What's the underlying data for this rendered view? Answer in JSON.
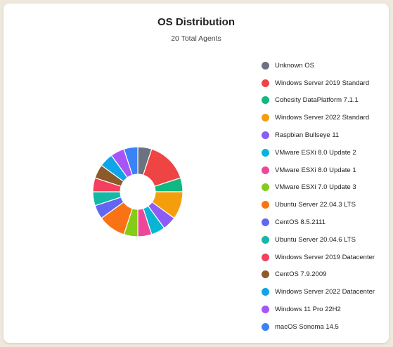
{
  "header": {
    "title": "OS Distribution",
    "subtitle": "20 Total Agents"
  },
  "chart_data": {
    "type": "pie",
    "donut": true,
    "title": "OS Distribution",
    "subtitle": "20 Total Agents",
    "legend_position": "right",
    "categories": [
      "Unknown OS",
      "Windows Server 2019 Standard",
      "Cohesity DataPlatform 7.1.1",
      "Windows Server 2022 Standard",
      "Raspbian Bullseye 11",
      "VMware ESXi 8.0 Update 2",
      "VMware ESXi 8.0 Update 1",
      "VMware ESXi 7.0 Update 3",
      "Ubuntu Server 22.04.3 LTS",
      "CentOS 8.5.2111",
      "Ubuntu Server 20.04.6 LTS",
      "Windows Server 2019 Datacenter",
      "CentOS 7.9.2009",
      "Windows Server 2022 Datacenter",
      "Windows 11 Pro 22H2",
      "macOS Sonoma 14.5"
    ],
    "values": [
      1,
      3,
      1,
      2,
      1,
      1,
      1,
      1,
      2,
      1,
      1,
      1,
      1,
      1,
      1,
      1
    ],
    "colors": [
      "#6b7280",
      "#ef4444",
      "#10b981",
      "#f59e0b",
      "#8b5cf6",
      "#06b6d4",
      "#ec4899",
      "#84cc16",
      "#f97316",
      "#6366f1",
      "#14b8a6",
      "#f43f5e",
      "#8b5a2b",
      "#0ea5e9",
      "#a855f7",
      "#3b82f6"
    ]
  }
}
